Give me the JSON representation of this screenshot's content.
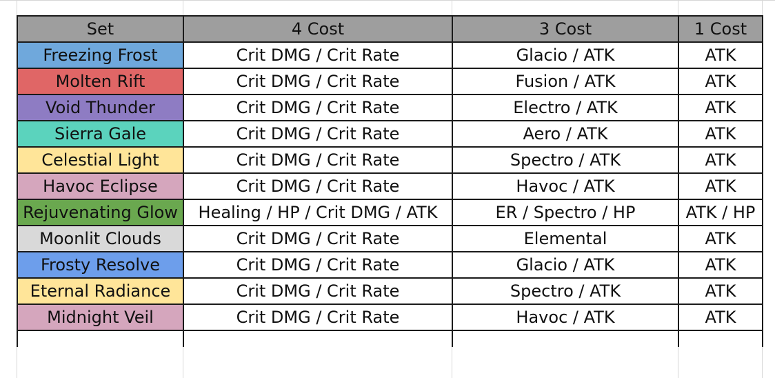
{
  "headers": [
    "Set",
    "4 Cost",
    "3 Cost",
    "1 Cost"
  ],
  "rows": [
    {
      "set": "Freezing Frost",
      "color": "#6fa8dc",
      "four": "Crit DMG / Crit Rate",
      "three": "Glacio / ATK",
      "one": "ATK"
    },
    {
      "set": "Molten Rift",
      "color": "#e06666",
      "four": "Crit DMG / Crit Rate",
      "three": "Fusion / ATK",
      "one": "ATK"
    },
    {
      "set": "Void Thunder",
      "color": "#8e7cc3",
      "four": "Crit DMG / Crit Rate",
      "three": "Electro / ATK",
      "one": "ATK"
    },
    {
      "set": "Sierra Gale",
      "color": "#5bd3bd",
      "four": "Crit DMG / Crit Rate",
      "three": "Aero / ATK",
      "one": "ATK"
    },
    {
      "set": "Celestial Light",
      "color": "#ffe599",
      "four": "Crit DMG / Crit Rate",
      "three": "Spectro / ATK",
      "one": "ATK"
    },
    {
      "set": "Havoc Eclipse",
      "color": "#d5a6bd",
      "four": "Crit DMG / Crit Rate",
      "three": "Havoc / ATK",
      "one": "ATK"
    },
    {
      "set": "Rejuvenating Glow",
      "color": "#6aa84f",
      "four": "Healing / HP / Crit DMG / ATK",
      "three": "ER / Spectro / HP",
      "one": "ATK / HP"
    },
    {
      "set": "Moonlit Clouds",
      "color": "#d9d9d9",
      "four": "Crit DMG / Crit Rate",
      "three": "Elemental",
      "one": "ATK"
    },
    {
      "set": "Frosty Resolve",
      "color": "#6d9eeb",
      "four": "Crit DMG / Crit Rate",
      "three": "Glacio / ATK",
      "one": "ATK"
    },
    {
      "set": "Eternal Radiance",
      "color": "#ffe599",
      "four": "Crit DMG / Crit Rate",
      "three": "Spectro / ATK",
      "one": "ATK"
    },
    {
      "set": "Midnight Veil",
      "color": "#d5a6bd",
      "four": "Crit DMG / Crit Rate",
      "three": "Havoc / ATK",
      "one": "ATK"
    }
  ]
}
